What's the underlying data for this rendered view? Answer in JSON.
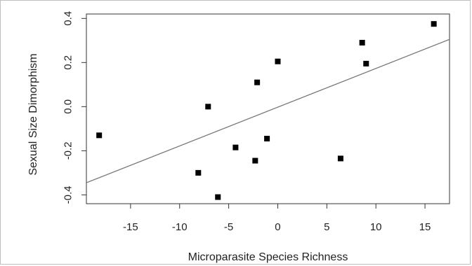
{
  "chart_data": {
    "type": "scatter",
    "title": "",
    "xlabel": "Microparasite Species Richness",
    "ylabel": "Sexual Size Dimorphism",
    "xlim": [
      -19.5,
      17.5
    ],
    "ylim": [
      -0.44,
      0.42
    ],
    "x_ticks": [
      -15,
      -10,
      -5,
      0,
      5,
      10,
      15
    ],
    "x_tick_labels": [
      "-15",
      "-10",
      "-5",
      "0",
      "5",
      "10",
      "15"
    ],
    "y_ticks": [
      -0.4,
      -0.2,
      0.0,
      0.2,
      0.4
    ],
    "y_tick_labels": [
      "-0.4",
      "-0.2",
      "0.0",
      "0.2",
      "0.4"
    ],
    "grid": false,
    "points": [
      {
        "x": -18.2,
        "y": -0.13
      },
      {
        "x": -8.1,
        "y": -0.3
      },
      {
        "x": -7.1,
        "y": 0.0
      },
      {
        "x": -6.1,
        "y": -0.41
      },
      {
        "x": -4.3,
        "y": -0.185
      },
      {
        "x": -2.3,
        "y": -0.245
      },
      {
        "x": -2.1,
        "y": 0.11
      },
      {
        "x": -1.1,
        "y": -0.145
      },
      {
        "x": 0.0,
        "y": 0.205
      },
      {
        "x": 6.4,
        "y": -0.235
      },
      {
        "x": 8.6,
        "y": 0.29
      },
      {
        "x": 9.0,
        "y": 0.195
      },
      {
        "x": 15.9,
        "y": 0.375
      }
    ],
    "fit_line": {
      "x": [
        -19.5,
        17.5
      ],
      "y": [
        -0.345,
        0.305
      ]
    },
    "colors": {
      "points": "#000000",
      "fit_line": "#777777",
      "axes": "#333333"
    }
  }
}
